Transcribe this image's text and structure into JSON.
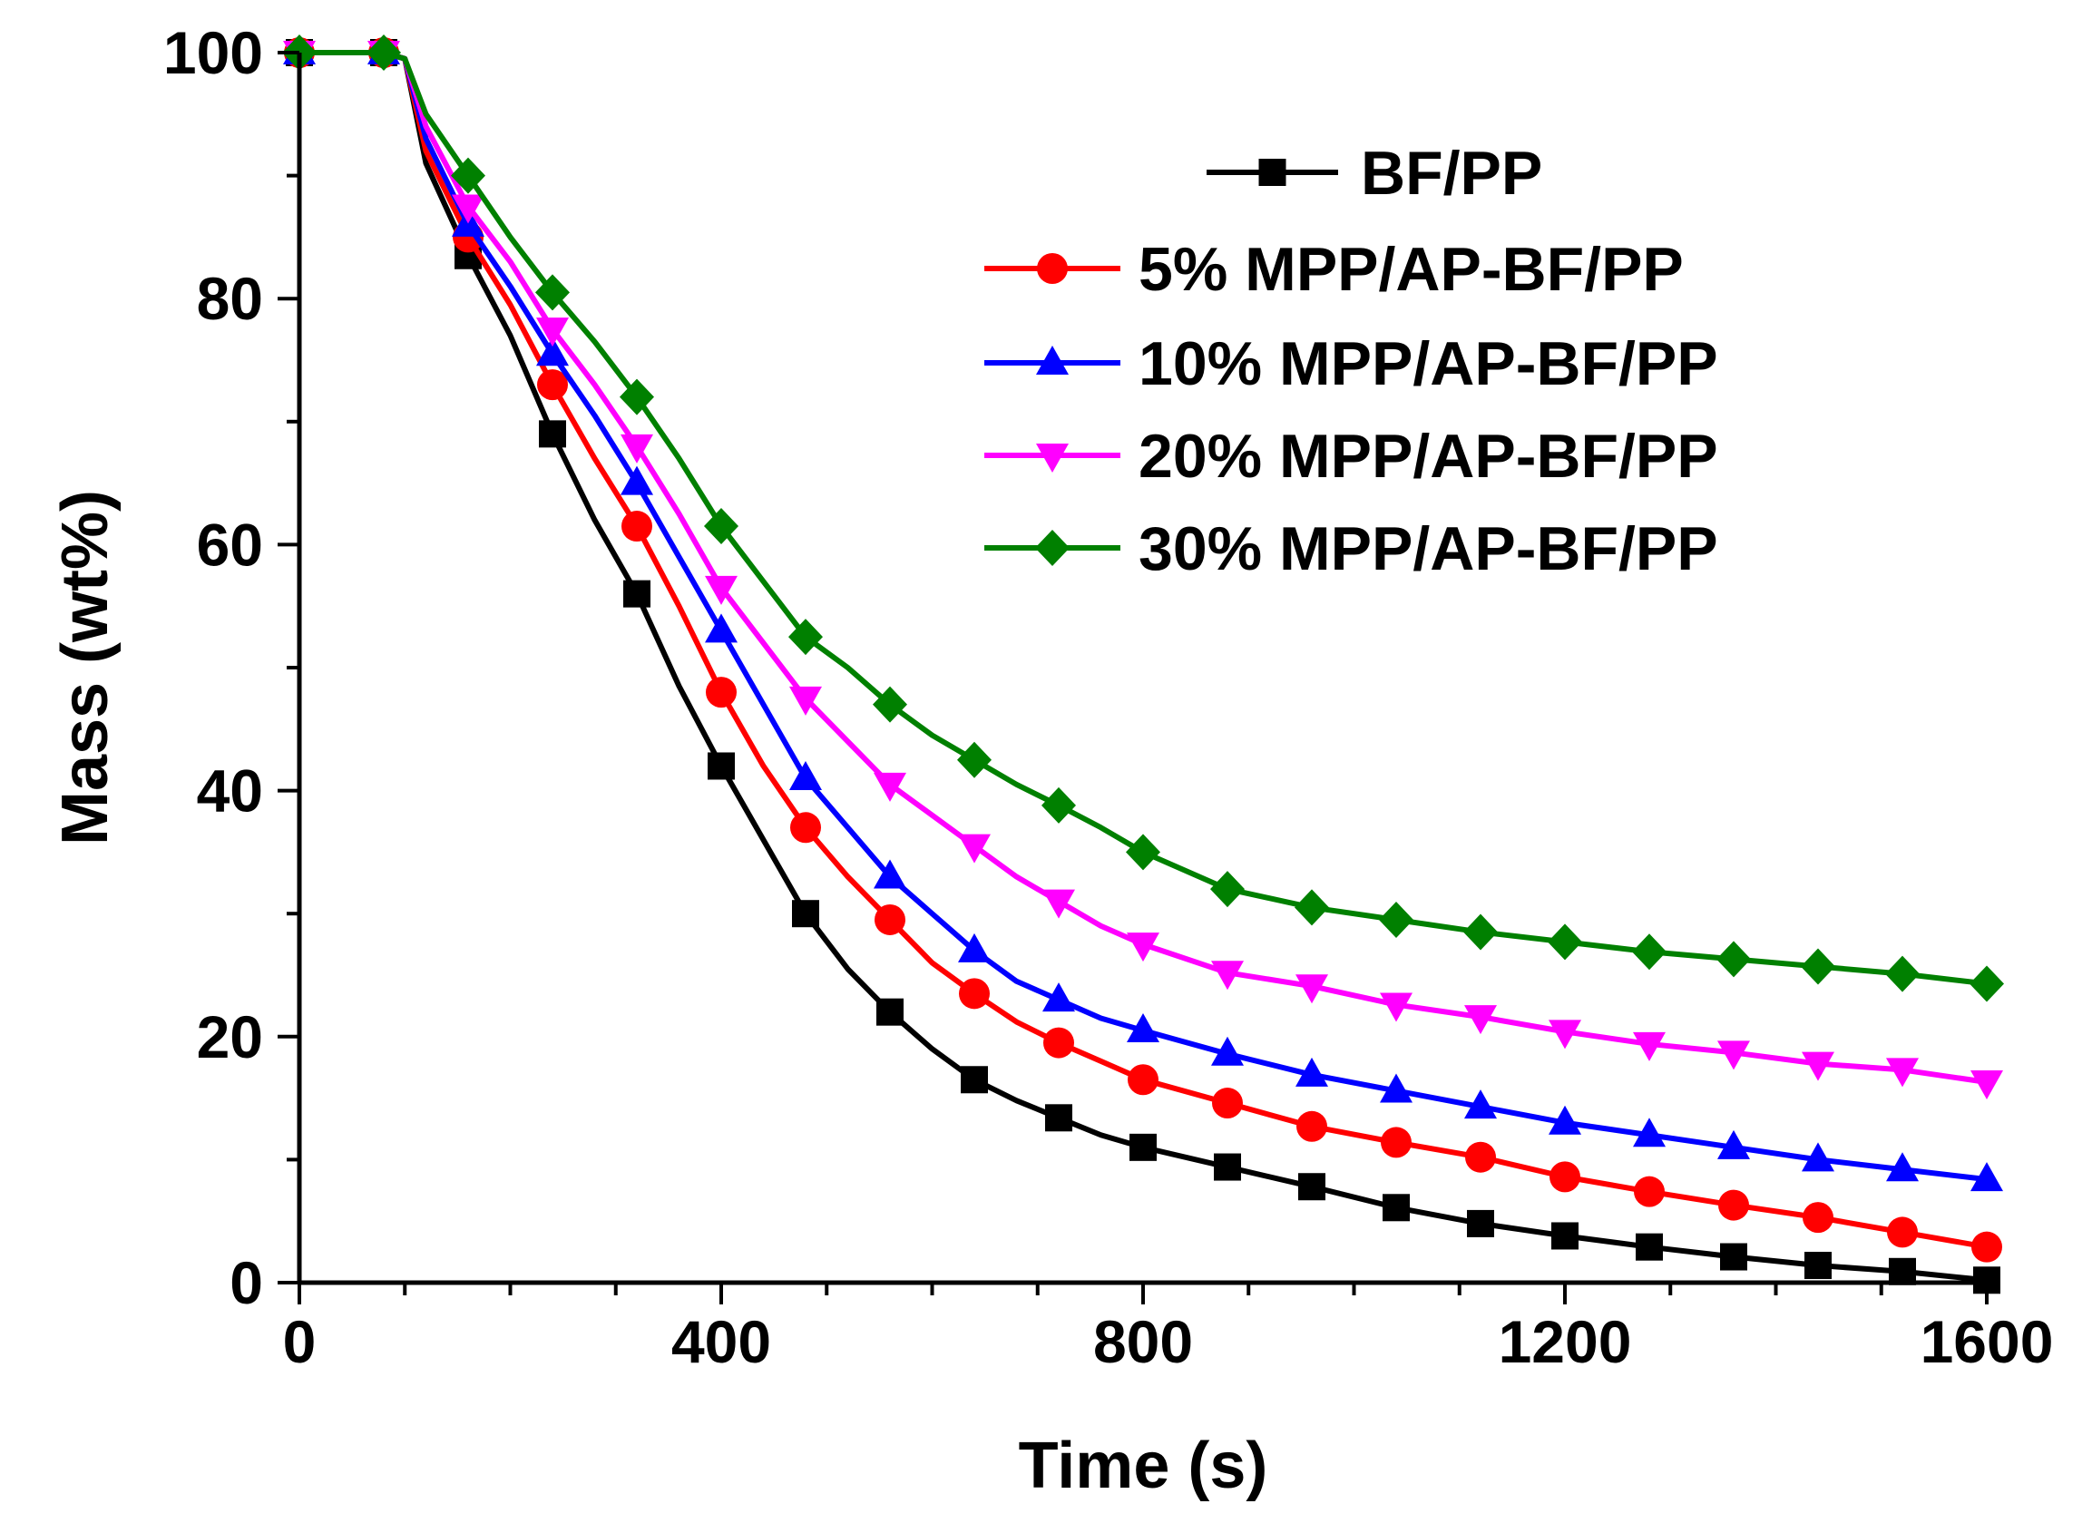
{
  "chart_data": {
    "type": "line",
    "title": "",
    "xlabel": "Time (s)",
    "ylabel": "Mass (wt%)",
    "xlim": [
      0,
      1600
    ],
    "ylim": [
      0,
      100
    ],
    "x_ticks": [
      0,
      400,
      800,
      1200,
      1600
    ],
    "y_ticks": [
      0,
      20,
      40,
      60,
      80,
      100
    ],
    "x_tick_labels": [
      "0",
      "400",
      "800",
      "1200",
      "1600"
    ],
    "y_tick_labels": [
      "0",
      "20",
      "40",
      "60",
      "80",
      "100"
    ],
    "grid": false,
    "legend_position": "top-right",
    "series": [
      {
        "name": "BF/PP",
        "color": "#000000",
        "marker": "square",
        "x": [
          0,
          80,
          100,
          120,
          160,
          200,
          240,
          280,
          320,
          360,
          400,
          440,
          480,
          520,
          560,
          600,
          640,
          680,
          720,
          760,
          800,
          880,
          960,
          1040,
          1120,
          1200,
          1280,
          1360,
          1440,
          1520,
          1600
        ],
        "y": [
          100,
          100,
          99.5,
          91,
          83.5,
          77,
          69,
          62,
          56,
          48.5,
          42,
          36,
          30,
          25.5,
          22,
          19,
          16.5,
          14.8,
          13.4,
          12,
          11,
          9.4,
          7.8,
          6.1,
          4.8,
          3.8,
          2.9,
          2.1,
          1.4,
          0.9,
          0.2
        ],
        "marker_x": [
          0,
          80,
          160,
          240,
          320,
          400,
          480,
          560,
          640,
          720,
          800,
          880,
          960,
          1040,
          1120,
          1200,
          1280,
          1360,
          1440,
          1520,
          1600
        ],
        "marker_y": [
          100,
          100,
          83.5,
          69,
          56,
          42,
          30,
          22,
          16.5,
          13.4,
          11,
          9.4,
          7.8,
          6.1,
          4.8,
          3.8,
          2.9,
          2.1,
          1.4,
          0.9,
          0.2
        ]
      },
      {
        "name": "5% MPP/AP-BF/PP",
        "color": "#ff0000",
        "marker": "circle",
        "x": [
          0,
          80,
          100,
          120,
          160,
          200,
          240,
          280,
          320,
          360,
          400,
          440,
          480,
          520,
          560,
          600,
          640,
          680,
          720,
          760,
          800,
          880,
          960,
          1040,
          1120,
          1200,
          1280,
          1360,
          1440,
          1520,
          1600
        ],
        "y": [
          100,
          100,
          99.5,
          92,
          85,
          79.5,
          73,
          67,
          61.5,
          55,
          48,
          42,
          37,
          33,
          29.5,
          26,
          23.5,
          21.2,
          19.5,
          18,
          16.5,
          14.6,
          12.7,
          11.4,
          10.2,
          8.6,
          7.4,
          6.3,
          5.3,
          4.1,
          2.9
        ],
        "marker_x": [
          0,
          80,
          160,
          240,
          320,
          400,
          480,
          560,
          640,
          720,
          800,
          880,
          960,
          1040,
          1120,
          1200,
          1280,
          1360,
          1440,
          1520,
          1600
        ],
        "marker_y": [
          100,
          100,
          85,
          73,
          61.5,
          48,
          37,
          29.5,
          23.5,
          19.5,
          16.5,
          14.6,
          12.7,
          11.4,
          10.2,
          8.6,
          7.4,
          6.3,
          5.3,
          4.1,
          2.9
        ]
      },
      {
        "name": "10% MPP/AP-BF/PP",
        "color": "#0000ff",
        "marker": "triangle-up",
        "x": [
          0,
          80,
          100,
          120,
          160,
          200,
          240,
          280,
          320,
          360,
          400,
          440,
          480,
          520,
          560,
          600,
          640,
          680,
          720,
          760,
          800,
          880,
          960,
          1040,
          1120,
          1200,
          1280,
          1360,
          1440,
          1520,
          1600
        ],
        "y": [
          100,
          100,
          99.5,
          93,
          86,
          81,
          75.5,
          70.5,
          65,
          59,
          53,
          47,
          41,
          37,
          33,
          30,
          27,
          24.5,
          23,
          21.5,
          20.5,
          18.6,
          16.9,
          15.6,
          14.3,
          13,
          12,
          11,
          10,
          9.2,
          8.4
        ],
        "marker_x": [
          0,
          80,
          160,
          240,
          320,
          400,
          480,
          560,
          640,
          720,
          800,
          880,
          960,
          1040,
          1120,
          1200,
          1280,
          1360,
          1440,
          1520,
          1600
        ],
        "marker_y": [
          100,
          100,
          86,
          75.5,
          65,
          53,
          41,
          33,
          27,
          23,
          20.5,
          18.6,
          16.9,
          15.6,
          14.3,
          13,
          12,
          11,
          10,
          9.2,
          8.4
        ]
      },
      {
        "name": "20% MPP/AP-BF/PP",
        "color": "#ff00ff",
        "marker": "triangle-down",
        "x": [
          0,
          80,
          100,
          120,
          160,
          200,
          240,
          280,
          320,
          360,
          400,
          440,
          480,
          520,
          560,
          600,
          640,
          680,
          720,
          760,
          800,
          880,
          960,
          1040,
          1120,
          1200,
          1280,
          1360,
          1440,
          1520,
          1600
        ],
        "y": [
          100,
          100,
          99.5,
          94,
          87.5,
          83,
          77.5,
          73,
          68,
          62.5,
          56.5,
          52,
          47.5,
          44,
          40.5,
          38,
          35.5,
          33,
          31,
          29,
          27.5,
          25.2,
          24.1,
          22.6,
          21.6,
          20.4,
          19.4,
          18.7,
          17.8,
          17.3,
          16.3
        ],
        "marker_x": [
          0,
          80,
          160,
          240,
          320,
          400,
          480,
          560,
          640,
          720,
          800,
          880,
          960,
          1040,
          1120,
          1200,
          1280,
          1360,
          1440,
          1520,
          1600
        ],
        "marker_y": [
          100,
          100,
          87.5,
          77.5,
          68,
          56.5,
          47.5,
          40.5,
          35.5,
          31,
          27.5,
          25.2,
          24.1,
          22.6,
          21.6,
          20.4,
          19.4,
          18.7,
          17.8,
          17.3,
          16.3
        ]
      },
      {
        "name": "30% MPP/AP-BF/PP",
        "color": "#008000",
        "marker": "diamond",
        "x": [
          0,
          80,
          100,
          120,
          160,
          200,
          240,
          280,
          320,
          360,
          400,
          440,
          480,
          520,
          560,
          600,
          640,
          680,
          720,
          760,
          800,
          880,
          960,
          1040,
          1120,
          1200,
          1280,
          1360,
          1440,
          1520,
          1600
        ],
        "y": [
          100,
          100,
          99.5,
          95,
          90,
          85,
          80.5,
          76.5,
          72,
          67,
          61.5,
          57,
          52.5,
          50,
          47,
          44.5,
          42.5,
          40.5,
          38.8,
          37,
          35,
          32,
          30.5,
          29.5,
          28.5,
          27.7,
          26.9,
          26.3,
          25.7,
          25.1,
          24.3
        ],
        "marker_x": [
          0,
          80,
          160,
          240,
          320,
          400,
          480,
          560,
          640,
          720,
          800,
          880,
          960,
          1040,
          1120,
          1200,
          1280,
          1360,
          1440,
          1520,
          1600
        ],
        "marker_y": [
          100,
          100,
          90,
          80.5,
          72,
          61.5,
          52.5,
          47,
          42.5,
          38.8,
          35,
          32,
          30.5,
          29.5,
          28.5,
          27.7,
          26.9,
          26.3,
          25.7,
          25.1,
          24.3
        ]
      }
    ]
  }
}
